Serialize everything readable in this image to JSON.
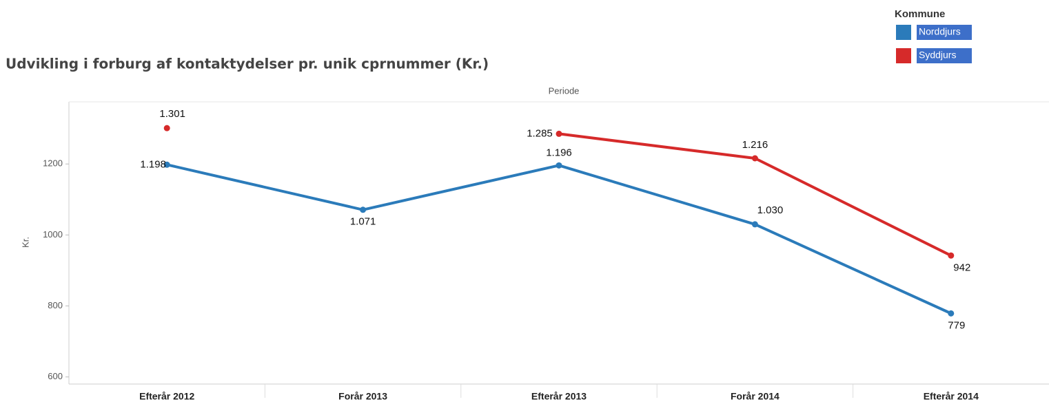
{
  "chart_data": {
    "type": "line",
    "title": "Udvikling i forburg af kontaktydelser pr. unik cprnummer (Kr.)",
    "x_label": "Periode",
    "y_label": "Kr.",
    "legend_title": "Kommune",
    "categories": [
      "Efterår 2012",
      "Forår 2013",
      "Efterår 2013",
      "Forår 2014",
      "Efterår 2014"
    ],
    "series": [
      {
        "name": "Norddjurs",
        "color": "#2b7bba",
        "values": [
          1198,
          1071,
          1196,
          1030,
          779
        ],
        "value_labels": [
          "1.198",
          "1.071",
          "1.196",
          "1.030",
          "779"
        ]
      },
      {
        "name": "Syddjurs",
        "color": "#d62a2a",
        "values": [
          1301,
          null,
          1285,
          1216,
          942
        ],
        "value_labels": [
          "1.301",
          null,
          "1.285",
          "1.216",
          "942"
        ]
      }
    ],
    "ylim": [
      580,
      1375
    ],
    "yticks": [
      600,
      800,
      1000,
      1200
    ],
    "legend": "top-right"
  }
}
